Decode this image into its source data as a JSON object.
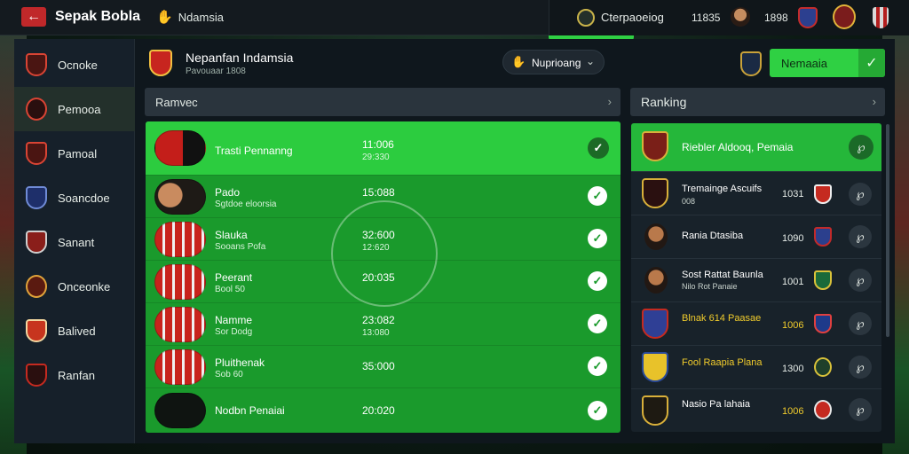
{
  "topbar": {
    "app_title": "Sepak Bobla",
    "region": "Ndamsia",
    "competition": "Cterpaoeiog",
    "stat1": "11835",
    "stat2": "1898"
  },
  "sidebar": {
    "items": [
      {
        "label": "Ocnoke",
        "icon": "shield-icon"
      },
      {
        "label": "Pemooa",
        "icon": "shield-icon"
      },
      {
        "label": "Pamoal",
        "icon": "shield-icon"
      },
      {
        "label": "Soancdoe",
        "icon": "shield-icon"
      },
      {
        "label": "Sanant",
        "icon": "shield-icon"
      },
      {
        "label": "Onceonke",
        "icon": "shield-icon"
      },
      {
        "label": "Balived",
        "icon": "shield-icon"
      },
      {
        "label": "Ranfan",
        "icon": "shield-icon"
      }
    ]
  },
  "header": {
    "team_name": "Nepanfan Indamsia",
    "team_sub": "Pavouaar 1808",
    "dropdown_label": "Nuprioang",
    "cta_label": "Nemaaia"
  },
  "left_section": {
    "title": "Ramvec",
    "rows": [
      {
        "name": "Trasti Pennanng",
        "sub": "",
        "v1": "11:006",
        "v2": "29:330"
      },
      {
        "name": "Pado",
        "sub": "Sgtdoe eloorsia",
        "v1": "15:088",
        "v2": ""
      },
      {
        "name": "Slauka",
        "sub": "Sooans Pofa",
        "v1": "32:600",
        "v2": "12:620"
      },
      {
        "name": "Peerant",
        "sub": "Bool 50",
        "v1": "20:035",
        "v2": ""
      },
      {
        "name": "Namme",
        "sub": "Sor Dodg",
        "v1": "23:082",
        "v2": "13:080"
      },
      {
        "name": "Pluithenak",
        "sub": "Sob 60",
        "v1": "35:000",
        "v2": ""
      },
      {
        "name": "Nodbn Penaiai",
        "sub": "",
        "v1": "20:020",
        "v2": ""
      }
    ]
  },
  "ranking": {
    "title": "Ranking",
    "rows": [
      {
        "name": "Riebler Aldooq, Pemaia",
        "sub": "",
        "score": "",
        "gold": false
      },
      {
        "name": "Tremainge Ascuifs",
        "sub": "008",
        "score": "1031",
        "gold": false
      },
      {
        "name": "Rania Dtasiba",
        "sub": "",
        "score": "1090",
        "gold": false
      },
      {
        "name": "Sost Rattat Baunla",
        "sub": "Nilo Rot Panaie",
        "score": "1001",
        "gold": false
      },
      {
        "name": "Blnak 614 Paasae",
        "sub": "",
        "score": "1006",
        "gold": true
      },
      {
        "name": "Fool Raapia Plana",
        "sub": "",
        "score": "1300",
        "gold": false
      },
      {
        "name": "Nasio Pa lahaia",
        "sub": "",
        "score": "1006",
        "gold": false
      }
    ]
  },
  "colors": {
    "accent_green": "#2fd043",
    "list_green": "#1a9a2c",
    "brand_red": "#c0282a",
    "gold": "#f1cc2c"
  }
}
